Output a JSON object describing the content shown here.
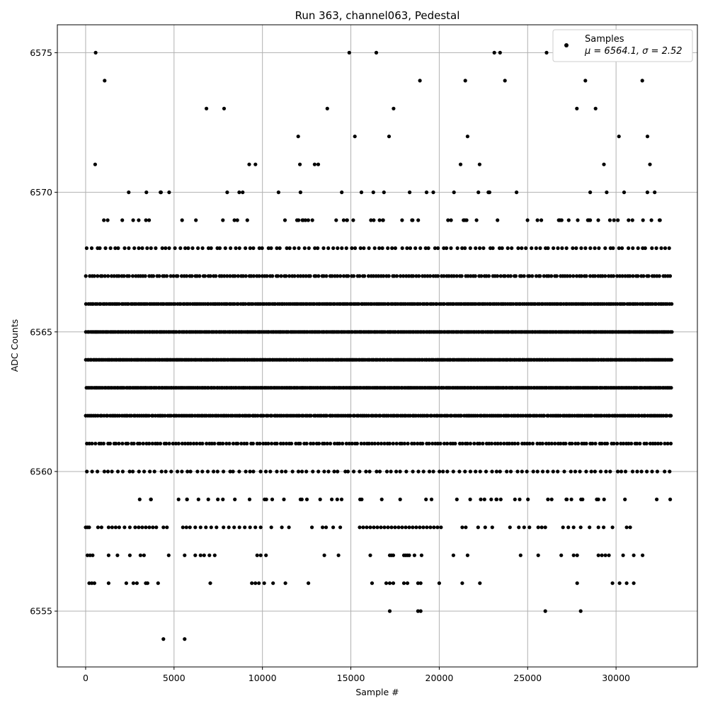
{
  "chart_data": {
    "type": "scatter",
    "title": "Run 363, channel063, Pedestal",
    "xlabel": "Sample #",
    "ylabel": "ADC Counts",
    "xlim": [
      -1600,
      34600
    ],
    "ylim": [
      6553,
      6576
    ],
    "xticks": [
      0,
      5000,
      10000,
      15000,
      20000,
      25000,
      30000
    ],
    "yticks": [
      6555,
      6560,
      6565,
      6570,
      6575
    ],
    "grid": true,
    "legend": {
      "placement": "top-right",
      "entries": [
        "Samples",
        "μ = 6564.1, σ = 2.52"
      ]
    },
    "marker_color": "#000000",
    "series": [
      {
        "name": "Samples",
        "mean": 6564.1,
        "sigma": 2.52,
        "x_range": [
          0,
          33200
        ],
        "levels": [
          {
            "y": 6554,
            "x": [
              4400,
              5600
            ]
          },
          {
            "y": 6555,
            "x": [
              17200,
              18800,
              18950,
              26000,
              28000
            ]
          },
          {
            "y": 6556,
            "x": [
              200,
              350,
              500,
              1300,
              2300,
              2700,
              2900,
              3400,
              3500,
              4100,
              7050,
              9400,
              9600,
              9800,
              10100,
              10600,
              11300,
              12600,
              16200,
              17000,
              17200,
              17400,
              18000,
              18200,
              18800,
              18950,
              20000,
              21300,
              22300,
              27800,
              29800,
              30200,
              30600,
              31000
            ]
          },
          {
            "y": 6557,
            "x": [
              100,
              250,
              400,
              1300,
              1800,
              2500,
              3100,
              3300,
              4700,
              5600,
              6200,
              6500,
              6700,
              7000,
              7300,
              9700,
              9900,
              10200,
              13500,
              14300,
              16100,
              17200,
              17300,
              17400,
              18000,
              18100,
              18200,
              18300,
              18600,
              19000,
              20800,
              21600,
              24600,
              25600,
              26900,
              27600,
              27800,
              29000,
              29200,
              29400,
              29600,
              30400,
              31000,
              31500
            ]
          },
          {
            "y": 6558,
            "x": [
              0,
              100,
              200,
              700,
              900,
              1300,
              1500,
              1700,
              1900,
              2200,
              2500,
              2800,
              3000,
              3200,
              3400,
              3600,
              3800,
              4000,
              4400,
              4600,
              5500,
              5700,
              5900,
              6200,
              6500,
              6800,
              7100,
              7400,
              7800,
              8100,
              8400,
              8700,
              9000,
              9300,
              9600,
              9900,
              10500,
              11100,
              11500,
              12800,
              13400,
              13600,
              14000,
              14400,
              15500,
              15700,
              15900,
              16100,
              16300,
              16500,
              16700,
              16900,
              17100,
              17300,
              17500,
              17700,
              17900,
              18100,
              18300,
              18500,
              18700,
              18900,
              19100,
              19300,
              19500,
              19700,
              19900,
              20100,
              21300,
              21500,
              22200,
              22600,
              23000,
              24000,
              24500,
              24800,
              25100,
              25600,
              25800,
              26000,
              27000,
              27300,
              27600,
              28000,
              28500,
              29000,
              29300,
              29800,
              30600,
              30800
            ]
          }
        ]
      }
    ]
  }
}
